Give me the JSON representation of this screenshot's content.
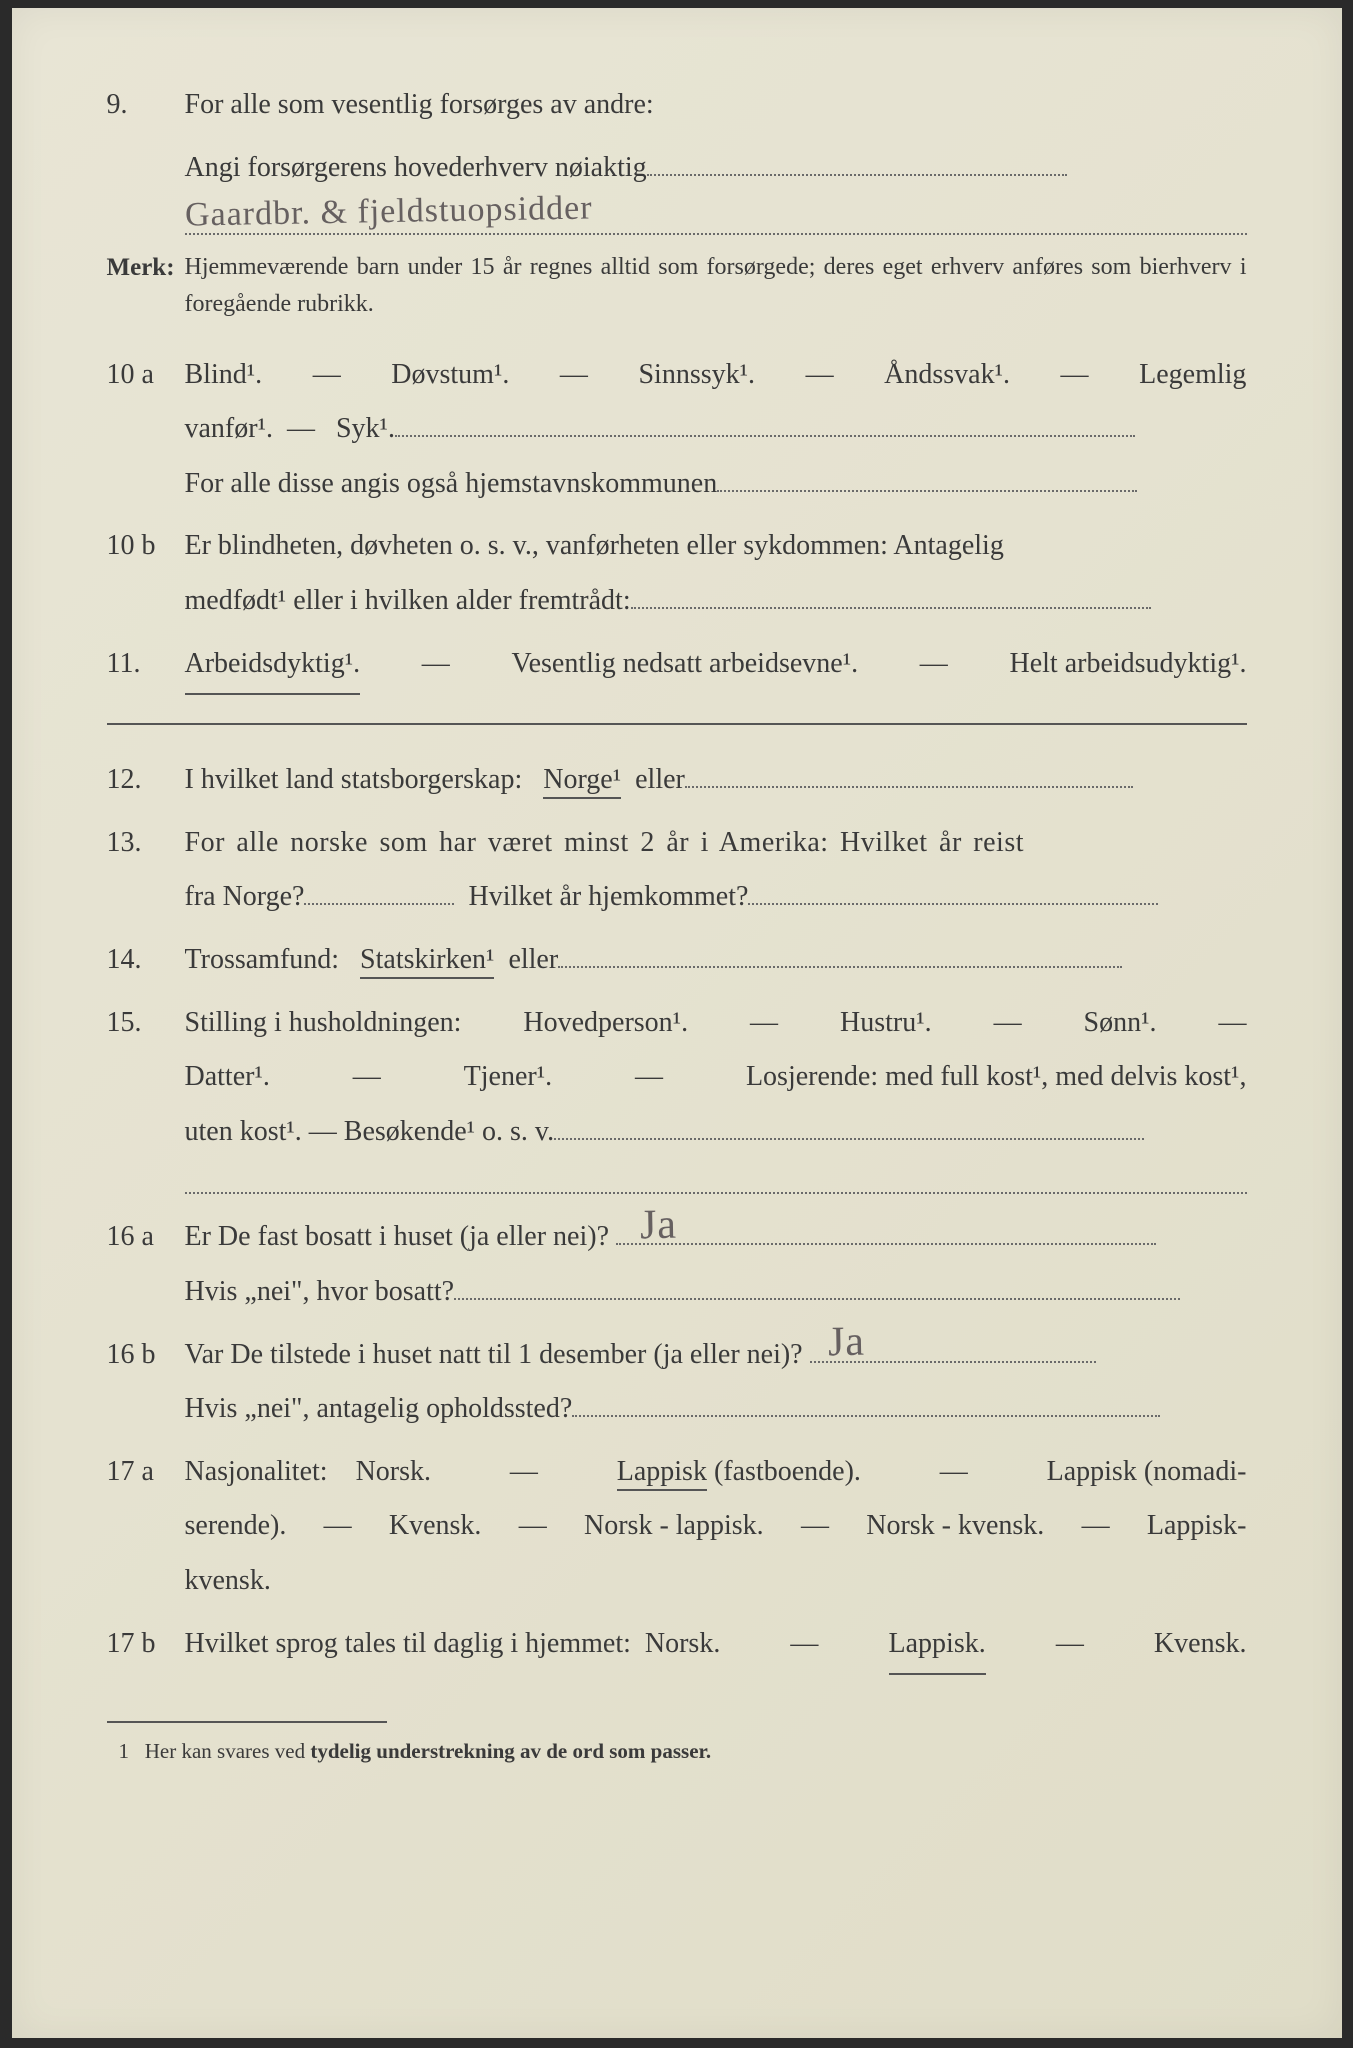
{
  "colors": {
    "page_bg": "#e5e2d0",
    "text": "#3a3a3a",
    "dotted": "#6a6a6a",
    "underline": "#555555",
    "handwriting": "#666060",
    "outer_bg": "#2a2a2a"
  },
  "typography": {
    "body_fontsize_pt": 21,
    "merk_fontsize_pt": 18,
    "foot_fontsize_pt": 16,
    "handwriting_family": "cursive"
  },
  "q9": {
    "num": "9.",
    "line1": "For alle som vesentlig forsørges av andre:",
    "line2_pre": "Angi forsørgerens hovederhverv nøiaktig",
    "handwritten": "Gaardbr. & fjeldstuopsidder"
  },
  "merk": {
    "label": "Merk:",
    "text": "Hjemmeværende barn under 15 år regnes alltid som forsørgede; deres eget erhverv anføres som bierhverv i foregående rubrikk."
  },
  "q10a": {
    "num": "10 a",
    "opts": [
      "Blind¹.",
      "Døvstum¹.",
      "Sinnssyk¹.",
      "Åndssvak¹.",
      "Legemlig"
    ],
    "line2": [
      "vanfør¹.",
      "Syk¹."
    ],
    "line3_pre": "For alle disse angis også hjemstavnskommunen"
  },
  "q10b": {
    "num": "10 b",
    "text": "Er blindheten, døvheten o. s. v., vanførheten eller sykdommen: Antagelig",
    "line2_pre": "medfødt¹ eller i hvilken alder fremtrådt:"
  },
  "q11": {
    "num": "11.",
    "opts": [
      "Arbeidsdyktig¹.",
      "Vesentlig nedsatt arbeidsevne¹.",
      "Helt arbeidsudyktig¹."
    ],
    "underlined_index": 0
  },
  "q12": {
    "num": "12.",
    "pre": "I hvilket land statsborgerskap:",
    "opt": "Norge¹",
    "post": "eller",
    "underlined": true
  },
  "q13": {
    "num": "13.",
    "line1": "For alle norske som har været minst 2 år i Amerika:  Hvilket år reist",
    "line2a": "fra Norge?",
    "line2b": "Hvilket år hjemkommet?"
  },
  "q14": {
    "num": "14.",
    "pre": "Trossamfund:",
    "opt": "Statskirken¹",
    "post": "eller",
    "underlined": true
  },
  "q15": {
    "num": "15.",
    "pre": "Stilling i husholdningen:",
    "opts_l1": [
      "Hovedperson¹.",
      "Hustru¹.",
      "Sønn¹."
    ],
    "opts_l2": [
      "Datter¹.",
      "Tjener¹.",
      "Losjerende:  med full kost¹, med delvis kost¹,"
    ],
    "opts_l3_pre": "uten kost¹.  —  Besøkende¹ o. s. v."
  },
  "q16a": {
    "num": "16 a",
    "q": "Er De fast bosatt i huset (ja eller nei)?",
    "ans": "Ja",
    "line2": "Hvis „nei\", hvor bosatt?"
  },
  "q16b": {
    "num": "16 b",
    "q": "Var De tilstede i huset natt til 1 desember (ja eller nei)?",
    "ans": "Ja",
    "line2": "Hvis „nei\", antagelig opholdssted?"
  },
  "q17a": {
    "num": "17 a",
    "pre": "Nasjonalitet:",
    "opts_l1": [
      "Norsk.",
      "Lappisk (fastboende).",
      "Lappisk (nomadi-"
    ],
    "underlined_l1_index": 1,
    "underlined_l1_text": "Lappisk",
    "opts_l2": [
      "serende).",
      "Kvensk.",
      "Norsk - lappisk.",
      "Norsk - kvensk.",
      "Lappisk-"
    ],
    "opts_l3": "kvensk."
  },
  "q17b": {
    "num": "17 b",
    "pre": "Hvilket sprog tales til daglig i hjemmet:",
    "opts": [
      "Norsk.",
      "Lappisk.",
      "Kvensk."
    ],
    "underlined_index": 1
  },
  "footnote": {
    "marker": "1",
    "text_pre": "Her kan svares ved ",
    "text_b": "tydelig understrekning av de ord som passer."
  }
}
